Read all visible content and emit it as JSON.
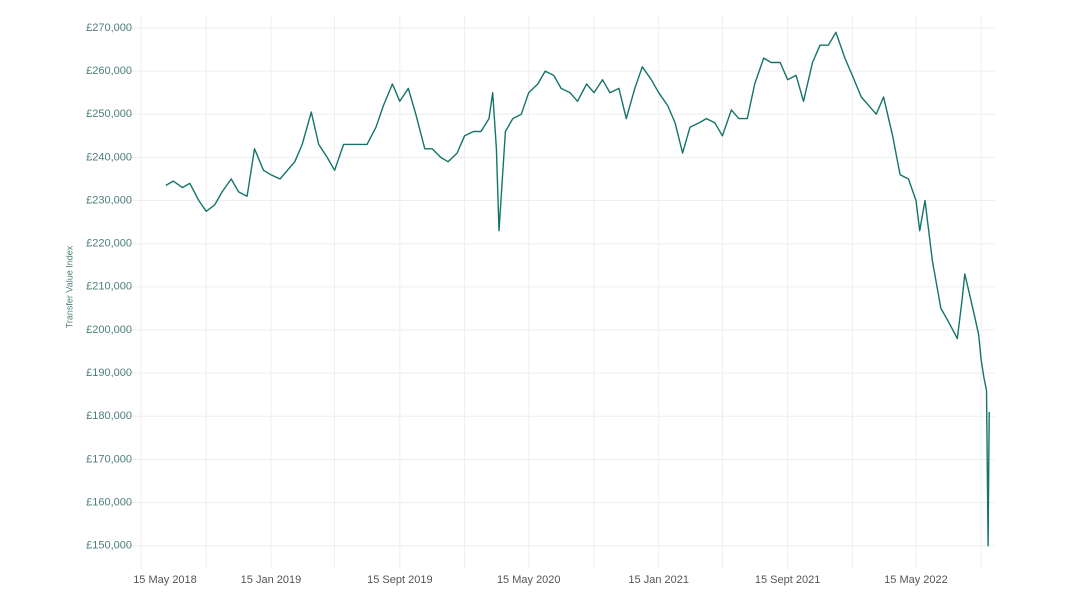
{
  "chart_data": {
    "type": "line",
    "y_label": "Transfer Value Index",
    "xlim": [
      "2018-03-27",
      "2022-10-11"
    ],
    "ylim": [
      146000,
      273000
    ],
    "grid": true,
    "color": "#15746a",
    "xticks": [
      {
        "value": "2018-05-15",
        "label": "15 May 2018"
      },
      {
        "value": "2019-01-15",
        "label": "15 Jan 2019"
      },
      {
        "value": "2019-09-15",
        "label": "15 Sept 2019"
      },
      {
        "value": "2020-05-15",
        "label": "15 May 2020"
      },
      {
        "value": "2021-01-15",
        "label": "15 Jan 2021"
      },
      {
        "value": "2021-09-15",
        "label": "15 Sept 2021"
      },
      {
        "value": "2022-05-15",
        "label": "15 May 2022"
      }
    ],
    "xgrid": [
      "2018-09-15",
      "2019-05-15",
      "2020-01-15",
      "2020-09-15",
      "2021-05-15",
      "2022-01-15",
      "2022-09-15"
    ],
    "yticks": [
      {
        "value": 150000,
        "label": "£150,000"
      },
      {
        "value": 160000,
        "label": "£160,000"
      },
      {
        "value": 170000,
        "label": "£170,000"
      },
      {
        "value": 180000,
        "label": "£180,000"
      },
      {
        "value": 190000,
        "label": "£190,000"
      },
      {
        "value": 200000,
        "label": "£200,000"
      },
      {
        "value": 210000,
        "label": "£210,000"
      },
      {
        "value": 220000,
        "label": "£220,000"
      },
      {
        "value": 230000,
        "label": "£230,000"
      },
      {
        "value": 240000,
        "label": "£240,000"
      },
      {
        "value": 250000,
        "label": "£250,000"
      },
      {
        "value": 260000,
        "label": "£260,000"
      },
      {
        "value": 270000,
        "label": "£270,000"
      }
    ],
    "x": [
      "2018-07-01",
      "2018-07-15",
      "2018-08-01",
      "2018-08-15",
      "2018-09-01",
      "2018-09-15",
      "2018-10-01",
      "2018-10-15",
      "2018-11-01",
      "2018-11-15",
      "2018-12-01",
      "2018-12-15",
      "2019-01-01",
      "2019-01-15",
      "2019-02-01",
      "2019-02-15",
      "2019-03-01",
      "2019-03-15",
      "2019-04-01",
      "2019-04-15",
      "2019-05-01",
      "2019-05-15",
      "2019-06-01",
      "2019-06-15",
      "2019-07-01",
      "2019-07-15",
      "2019-08-01",
      "2019-08-15",
      "2019-09-01",
      "2019-09-15",
      "2019-10-01",
      "2019-10-15",
      "2019-11-01",
      "2019-11-15",
      "2019-12-01",
      "2019-12-15",
      "2020-01-01",
      "2020-01-15",
      "2020-02-01",
      "2020-02-15",
      "2020-03-01",
      "2020-03-08",
      "2020-03-15",
      "2020-03-20",
      "2020-04-01",
      "2020-04-15",
      "2020-05-01",
      "2020-05-15",
      "2020-06-01",
      "2020-06-15",
      "2020-07-01",
      "2020-07-15",
      "2020-08-01",
      "2020-08-15",
      "2020-09-01",
      "2020-09-15",
      "2020-10-01",
      "2020-10-15",
      "2020-11-01",
      "2020-11-15",
      "2020-12-01",
      "2020-12-15",
      "2021-01-01",
      "2021-01-15",
      "2021-02-01",
      "2021-02-15",
      "2021-03-01",
      "2021-03-15",
      "2021-04-01",
      "2021-04-15",
      "2021-05-01",
      "2021-05-15",
      "2021-06-01",
      "2021-06-15",
      "2021-07-01",
      "2021-07-15",
      "2021-08-01",
      "2021-08-15",
      "2021-09-01",
      "2021-09-15",
      "2021-10-01",
      "2021-10-15",
      "2021-11-01",
      "2021-11-15",
      "2021-12-01",
      "2021-12-15",
      "2022-01-01",
      "2022-01-15",
      "2022-02-01",
      "2022-02-15",
      "2022-03-01",
      "2022-03-15",
      "2022-04-01",
      "2022-04-15",
      "2022-05-01",
      "2022-05-15",
      "2022-05-22",
      "2022-06-01",
      "2022-06-15",
      "2022-07-01",
      "2022-07-15",
      "2022-08-01",
      "2022-08-10",
      "2022-08-15",
      "2022-09-01",
      "2022-09-10",
      "2022-09-15",
      "2022-09-20",
      "2022-09-25",
      "2022-09-28",
      "2022-09-30"
    ],
    "values": [
      233500,
      234500,
      233000,
      234000,
      230000,
      227500,
      229000,
      232000,
      235000,
      232000,
      231000,
      242000,
      237000,
      236000,
      235000,
      237000,
      239000,
      243000,
      250500,
      243000,
      240000,
      237000,
      243000,
      243000,
      243000,
      243000,
      247000,
      252000,
      257000,
      253000,
      256000,
      250000,
      242000,
      242000,
      240000,
      239000,
      241000,
      245000,
      246000,
      246000,
      249000,
      255000,
      242000,
      223000,
      246000,
      249000,
      250000,
      255000,
      257000,
      260000,
      259000,
      256000,
      255000,
      253000,
      257000,
      255000,
      258000,
      255000,
      256000,
      249000,
      256000,
      261000,
      258000,
      255000,
      252000,
      248000,
      241000,
      247000,
      248000,
      249000,
      248000,
      245000,
      251000,
      249000,
      249000,
      257000,
      263000,
      262000,
      262000,
      258000,
      259000,
      253000,
      262000,
      266000,
      266000,
      269000,
      263000,
      259000,
      254000,
      252000,
      250000,
      254000,
      245000,
      236000,
      235000,
      230000,
      223000,
      230000,
      216000,
      205000,
      202000,
      198000,
      207000,
      213000,
      204000,
      199000,
      193000,
      189000,
      186000,
      150000,
      181000
    ]
  }
}
